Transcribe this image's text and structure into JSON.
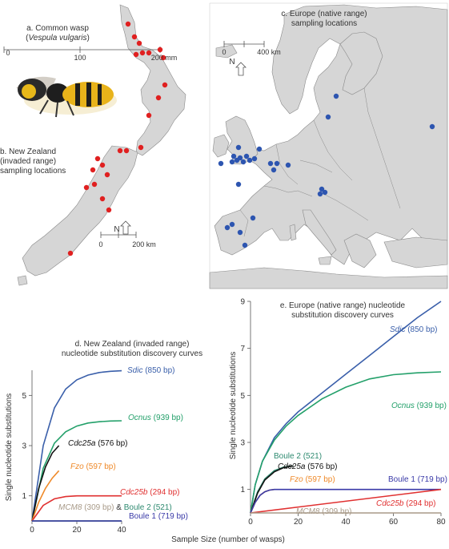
{
  "panel_a": {
    "title": "a. Common wasp",
    "species": "Vespula vulgaris",
    "scale": {
      "ticks": [
        "0",
        "100",
        "200 mm"
      ]
    }
  },
  "panel_b": {
    "lines": [
      "b. New Zealand",
      "(invaded range)",
      "sampling locations"
    ],
    "north": "N",
    "scale": {
      "ticks": [
        "0",
        "200 km"
      ]
    }
  },
  "panel_c": {
    "lines": [
      "c. Europe (native range)",
      "sampling locations"
    ],
    "north": "N",
    "scale": {
      "ticks": [
        "0",
        "400 km"
      ]
    }
  },
  "colors": {
    "nz_points": "#e02020",
    "eu_points": "#2d55b0",
    "land": "#d6d6d6",
    "border": "#8a8a8a",
    "Sdic": "#3a5faa",
    "Ocnus": "#23a06a",
    "Cdc25a": "#111111",
    "Fzo": "#ef8a2a",
    "Cdc25b": "#e03030",
    "MCM8": "#a89a88",
    "Boule2": "#2e8a70",
    "Boule1": "#3a3aa8"
  },
  "shared_xlabel": "Sample Size (number of wasps)",
  "chart_data": [
    {
      "type": "line",
      "title": "d. New Zealand (invaded range)\nnucleotide substitution discovery curves",
      "ylabel": "Single nucleotide substitutions",
      "xlabel": "Sample Size (number of wasps)",
      "xlim": [
        0,
        40
      ],
      "ylim": [
        0,
        6
      ],
      "xticks": [
        0,
        20,
        40
      ],
      "yticks": [
        1,
        3,
        5
      ],
      "series": [
        {
          "key": "Sdic",
          "name": "Sdic",
          "size": "(850 bp)",
          "x": [
            0,
            5,
            10,
            15,
            20,
            25,
            30,
            35,
            40
          ],
          "y": [
            0,
            3.0,
            4.5,
            5.25,
            5.62,
            5.81,
            5.91,
            5.96,
            5.98
          ]
        },
        {
          "key": "Ocnus",
          "name": "Ocnus",
          "size": "(939 bp)",
          "x": [
            0,
            5,
            10,
            15,
            20,
            25,
            30,
            35,
            40
          ],
          "y": [
            0,
            2.1,
            3.1,
            3.55,
            3.78,
            3.9,
            3.95,
            3.98,
            3.99
          ]
        },
        {
          "key": "Cdc25a",
          "name": "Cdc25a",
          "size": "(576 bp)",
          "x": [
            0,
            3,
            6,
            9,
            12
          ],
          "y": [
            0,
            1.3,
            2.15,
            2.7,
            3.0
          ]
        },
        {
          "key": "Fzo",
          "name": "Fzo",
          "size": "(597 bp)",
          "x": [
            0,
            3,
            6,
            9,
            12
          ],
          "y": [
            0,
            0.75,
            1.3,
            1.7,
            2.0
          ]
        },
        {
          "key": "Cdc25b",
          "name": "Cdc25b",
          "size": "(294 bp)",
          "x": [
            0,
            5,
            10,
            15,
            20,
            30,
            40
          ],
          "y": [
            0,
            0.62,
            0.88,
            0.97,
            1.0,
            1.0,
            1.0
          ]
        },
        {
          "key": "MCM8",
          "name": "MCM8",
          "size": "(309 bp)",
          "x": [
            0,
            40
          ],
          "y": [
            0,
            0
          ]
        },
        {
          "key": "Boule2",
          "name": "Boule 2",
          "size": "(521)",
          "x": [
            0,
            40
          ],
          "y": [
            0,
            0
          ]
        },
        {
          "key": "Boule1",
          "name": "Boule 1",
          "size": "(719 bp)",
          "x": [
            0,
            40
          ],
          "y": [
            0,
            0
          ]
        }
      ]
    },
    {
      "type": "line",
      "title": "e. Europe (native range) nucleotide\nsubstitution discovery curves",
      "ylabel": "Single nucleotide substitutions",
      "xlabel": "Sample Size (number of wasps)",
      "xlim": [
        0,
        80
      ],
      "ylim": [
        0,
        9
      ],
      "xticks": [
        0,
        20,
        40,
        60,
        80
      ],
      "yticks": [
        1,
        3,
        5,
        7,
        9
      ],
      "series": [
        {
          "key": "Sdic",
          "name": "Sdic",
          "size": "(850 bp)",
          "x": [
            0,
            2,
            5,
            10,
            15,
            20,
            30,
            40,
            50,
            60,
            70,
            80
          ],
          "y": [
            0,
            1.2,
            2.2,
            3.2,
            3.8,
            4.3,
            5.1,
            5.9,
            6.7,
            7.5,
            8.3,
            9.0
          ]
        },
        {
          "key": "Ocnus",
          "name": "Ocnus",
          "size": "(939 bp)",
          "x": [
            0,
            2,
            5,
            10,
            15,
            20,
            30,
            40,
            50,
            60,
            70,
            80
          ],
          "y": [
            0,
            1.2,
            2.2,
            3.1,
            3.7,
            4.15,
            4.85,
            5.35,
            5.7,
            5.88,
            5.96,
            6.0
          ]
        },
        {
          "key": "Boule2",
          "name": "Boule 2",
          "size": "(521)",
          "x": [
            0,
            3,
            6,
            10,
            14,
            18
          ],
          "y": [
            0,
            0.9,
            1.45,
            1.8,
            1.95,
            2.0
          ]
        },
        {
          "key": "Cdc25a",
          "name": "Cdc25a",
          "size": "(576 bp)",
          "x": [
            0,
            3,
            6,
            10,
            14,
            18
          ],
          "y": [
            0,
            0.85,
            1.4,
            1.75,
            1.93,
            2.0
          ]
        },
        {
          "key": "Fzo",
          "name": "Fzo",
          "size": "(597 bp)",
          "x": [
            0,
            2,
            4,
            6,
            8,
            10
          ],
          "y": [
            0,
            0.45,
            0.75,
            0.9,
            0.97,
            1.0
          ]
        },
        {
          "key": "Boule1",
          "name": "Boule 1",
          "size": "(719 bp)",
          "x": [
            0,
            2,
            4,
            6,
            8,
            10,
            80
          ],
          "y": [
            0,
            0.45,
            0.75,
            0.9,
            0.97,
            1.0,
            1.0
          ]
        },
        {
          "key": "Cdc25b",
          "name": "Cdc25b",
          "size": "(294 bp)",
          "x": [
            0,
            80
          ],
          "y": [
            0,
            1.0
          ]
        },
        {
          "key": "MCM8",
          "name": "MCM8",
          "size": "(309 bp)",
          "x": [
            0,
            80
          ],
          "y": [
            0,
            0
          ]
        }
      ]
    }
  ]
}
